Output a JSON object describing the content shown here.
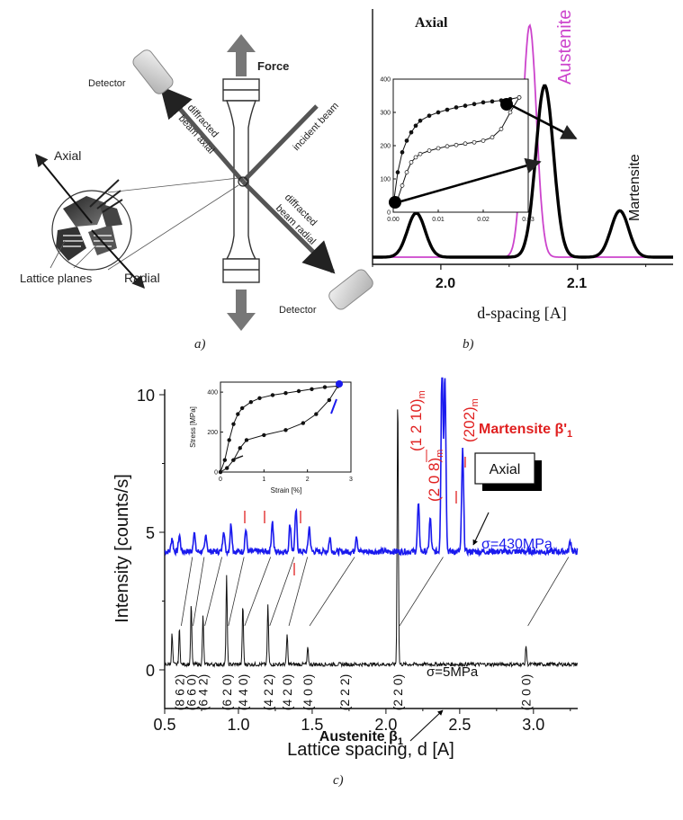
{
  "panel_a": {
    "force_label": "Force",
    "detector_label_left": "Detector",
    "detector_label_right": "Detector",
    "incident_label": "incident beam",
    "diffracted_axial_label_1": "diffracted",
    "diffracted_axial_label_2": "beam  axial",
    "diffracted_radial_label_1": "diffracted",
    "diffracted_radial_label_2": "beam  radial",
    "axial_label": "Axial",
    "radial_label": "Radial",
    "lattice_label": "Lattice planes",
    "caption": "a)"
  },
  "panel_b": {
    "title": "Axial",
    "austenite_label": "Austenite",
    "martensite_label": "Martensite",
    "xlabel": "d-spacing [A]",
    "caption": "b)",
    "colors": {
      "austenite": "#cc44cc",
      "martensite": "#000000"
    },
    "chart_data": {
      "type": "line",
      "xlabel": "d-spacing [A]",
      "xticks": [
        "2.0",
        "2.1"
      ],
      "xlim": [
        1.95,
        2.17
      ],
      "series": [
        {
          "name": "Austenite",
          "peaks": [
            {
              "center": 2.065,
              "height": 1.0
            }
          ]
        },
        {
          "name": "Martensite",
          "peaks": [
            {
              "center": 1.982,
              "height": 0.19
            },
            {
              "center": 2.076,
              "height": 0.74
            },
            {
              "center": 2.131,
              "height": 0.2
            }
          ]
        }
      ]
    },
    "inset": {
      "yticks": [
        "0",
        "100",
        "200",
        "300",
        "400"
      ],
      "xticks": [
        "0.00",
        "0.01",
        "0.02",
        "0.03"
      ],
      "chart_data": {
        "type": "line",
        "xlim": [
          0,
          0.03
        ],
        "ylim": [
          0,
          400
        ],
        "series": [
          {
            "x": [
              0.0,
              0.001,
              0.002,
              0.003,
              0.004,
              0.005,
              0.006,
              0.008,
              0.01,
              0.012,
              0.014,
              0.016,
              0.018,
              0.02,
              0.022,
              0.024,
              0.026,
              0.028
            ],
            "y": [
              20,
              120,
              180,
              215,
              240,
              260,
              275,
              290,
              300,
              308,
              315,
              320,
              325,
              330,
              333,
              336,
              340,
              345
            ]
          },
          {
            "x": [
              0.0,
              0.001,
              0.002,
              0.003,
              0.004,
              0.005,
              0.006,
              0.008,
              0.01,
              0.012,
              0.014,
              0.016,
              0.018,
              0.02,
              0.022,
              0.024,
              0.026,
              0.028
            ],
            "y": [
              20,
              40,
              80,
              120,
              150,
              165,
              175,
              185,
              192,
              198,
              202,
              206,
              210,
              215,
              225,
              250,
              300,
              345
            ]
          }
        ]
      }
    }
  },
  "panel_c": {
    "ylabel": "Intensity [counts/s]",
    "xlabel": "Lattice spacing, d [A]",
    "xticks": [
      "0.5",
      "1.0",
      "1.5",
      "2.0",
      "2.5",
      "3.0"
    ],
    "yticks": [
      "0",
      "5",
      "10"
    ],
    "martensite_title": "Martensite β'",
    "martensite_sub": "1",
    "austenite_title": "Austenite β",
    "austenite_sub": "1",
    "axial_box": "Axial",
    "sigma_high": "σ=430MPa",
    "sigma_low": "σ=5MPa",
    "caption": "c)",
    "hkl_austenite": [
      "(8 6 2)",
      "(6 6 0)",
      "(6 4 2)",
      "(6 2 0)",
      "(4 4 0)",
      "(4 2 2)",
      "(4 2 0)",
      "(4 0 0)",
      "(2 2 2)",
      "(2 2 0)",
      "(2 0 0)"
    ],
    "hkl_martensite": [
      "(2 0 8)",
      "(1 2 10)",
      "(202)"
    ],
    "hkl_martensite_sub": "m",
    "colors": {
      "high_stress": "#1a1aee",
      "low_stress": "#111111",
      "martensite": "#e02020"
    },
    "inset": {
      "ylabel": "Stress [MPa]",
      "xlabel": "Strain [%]",
      "yticks": [
        "0",
        "200",
        "400"
      ],
      "xticks": [
        "0",
        "1",
        "2",
        "3"
      ],
      "chart_data": {
        "type": "line",
        "xlim": [
          0,
          3
        ],
        "ylim": [
          0,
          450
        ],
        "series": [
          {
            "x": [
              0,
              0.1,
              0.2,
              0.3,
              0.4,
              0.5,
              0.7,
              0.9,
              1.2,
              1.5,
              1.8,
              2.1,
              2.4,
              2.7
            ],
            "y": [
              0,
              60,
              160,
              240,
              290,
              320,
              350,
              370,
              385,
              395,
              405,
              415,
              425,
              430
            ]
          },
          {
            "x": [
              0,
              0.15,
              0.3,
              0.45,
              0.6,
              1.0,
              1.5,
              1.9,
              2.2,
              2.5,
              2.7
            ],
            "y": [
              0,
              20,
              60,
              120,
              160,
              185,
              210,
              245,
              290,
              360,
              430
            ]
          }
        ]
      }
    },
    "chart_data": {
      "type": "line",
      "xlabel": "Lattice spacing, d [A]",
      "ylabel": "Intensity [counts/s]",
      "xlim": [
        0.5,
        3.3
      ],
      "ylim": [
        0,
        10.5
      ],
      "series": [
        {
          "name": "σ=430MPa",
          "baseline": 4.3,
          "peaks": [
            [
              0.55,
              0.5
            ],
            [
              0.6,
              0.6
            ],
            [
              0.7,
              0.7
            ],
            [
              0.78,
              0.6
            ],
            [
              0.9,
              0.8
            ],
            [
              0.95,
              1.0
            ],
            [
              1.05,
              0.8
            ],
            [
              1.23,
              1.1
            ],
            [
              1.35,
              1.0
            ],
            [
              1.39,
              1.5
            ],
            [
              1.48,
              0.9
            ],
            [
              1.62,
              0.5
            ],
            [
              1.8,
              0.6
            ],
            [
              2.22,
              1.7
            ],
            [
              2.3,
              1.2
            ],
            [
              2.38,
              7.0
            ],
            [
              2.4,
              6.5
            ],
            [
              2.52,
              3.7
            ],
            [
              3.25,
              0.4
            ]
          ]
        },
        {
          "name": "σ=5MPa",
          "baseline": 0.2,
          "peaks": [
            [
              0.55,
              1.1
            ],
            [
              0.6,
              1.3
            ],
            [
              0.68,
              2.2
            ],
            [
              0.76,
              1.8
            ],
            [
              0.92,
              3.3
            ],
            [
              1.03,
              2.2
            ],
            [
              1.2,
              2.2
            ],
            [
              1.33,
              1.1
            ],
            [
              1.47,
              0.6
            ],
            [
              2.08,
              10.0
            ],
            [
              2.95,
              0.7
            ]
          ]
        }
      ]
    }
  }
}
